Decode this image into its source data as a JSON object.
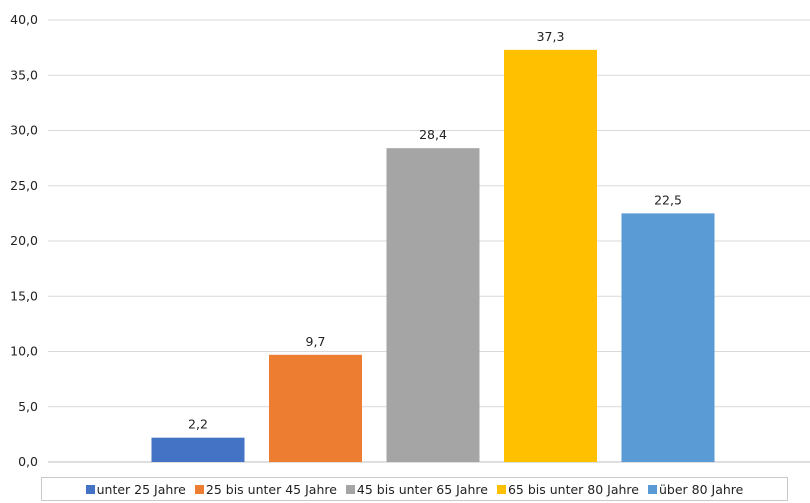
{
  "chart_data": {
    "type": "bar",
    "categories": [
      "unter 25 Jahre",
      "25 bis unter 45 Jahre",
      "45 bis unter 65 Jahre",
      "65 bis unter 80 Jahre",
      "über 80 Jahre"
    ],
    "values": [
      2.2,
      9.7,
      28.4,
      37.3,
      22.5
    ],
    "value_labels": [
      "2,2",
      "9,7",
      "28,4",
      "37,3",
      "22,5"
    ],
    "colors": [
      "#4472C4",
      "#ED7D31",
      "#A5A5A5",
      "#FFC000",
      "#5B9BD5"
    ],
    "ylim": [
      0,
      40
    ],
    "y_ticks": [
      "0,0",
      "5,0",
      "10,0",
      "15,0",
      "20,0",
      "25,0",
      "30,0",
      "35,0",
      "40,0"
    ],
    "grid": true,
    "legend_position": "bottom",
    "title": "",
    "xlabel": "",
    "ylabel": ""
  }
}
